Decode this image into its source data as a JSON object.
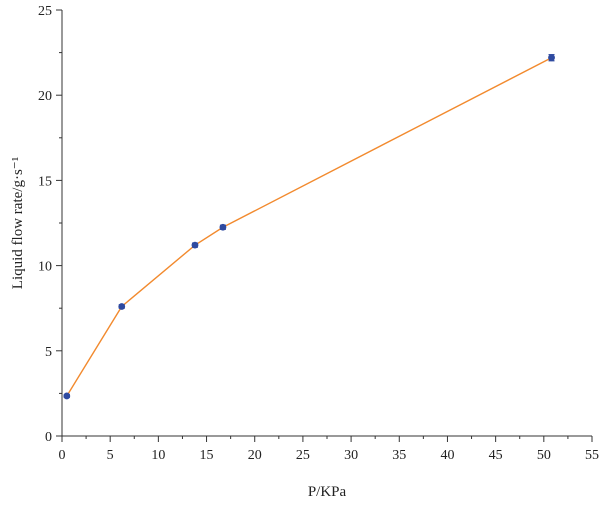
{
  "chart_data": {
    "type": "line",
    "xlabel": "P/KPa",
    "ylabel": "Liquid flow rate/g·s⁻¹",
    "xlim": [
      0,
      55
    ],
    "ylim": [
      0,
      25
    ],
    "x_ticks": [
      0,
      5,
      10,
      15,
      20,
      25,
      30,
      35,
      40,
      45,
      50,
      55
    ],
    "y_ticks": [
      0,
      5,
      10,
      15,
      20,
      25
    ],
    "grid": false,
    "legend": "none",
    "series": [
      {
        "x": [
          0.5,
          6.2,
          13.8,
          16.7,
          50.8
        ],
        "y": [
          2.35,
          7.6,
          11.2,
          12.25,
          22.2
        ],
        "error": [
          0.08,
          0.1,
          0.12,
          0.12,
          0.18
        ],
        "line_color": "#f28a2e",
        "marker_color": "#2f4aa0"
      }
    ]
  }
}
